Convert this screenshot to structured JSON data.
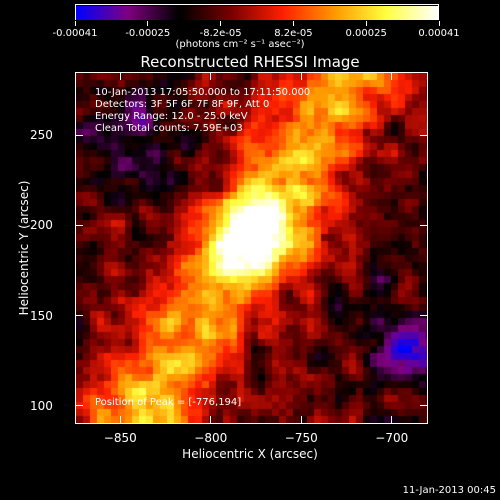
{
  "colorbar": {
    "tick_labels": [
      "-0.00041",
      "-0.00025",
      "-8.2e-05",
      "8.2e-05",
      "0.00025",
      "0.00041"
    ],
    "units": "(photons cm⁻² s⁻¹ asec⁻²)",
    "colormap": [
      "#0000ff",
      "#800080",
      "#000000",
      "#7a0000",
      "#ff2000",
      "#ff9900",
      "#ffff40",
      "#ffffff"
    ]
  },
  "title": "Reconstructed RHESSI Image",
  "annotations": {
    "time_range": "10-Jan-2013 17:05:50.000 to 17:11:50.000",
    "detectors": "Detectors: 3F 5F 6F 7F 8F 9F, Att 0",
    "energy_range": "Energy Range: 12.0 - 25.0 keV",
    "clean_counts": "Clean     Total counts: 7.59E+03",
    "peak_position": "Position of Peak = [-776,194]"
  },
  "axes": {
    "x_label": "Heliocentric X (arcsec)",
    "y_label": "Heliocentric Y (arcsec)",
    "x_range": [
      -875,
      -680
    ],
    "y_range": [
      90,
      285
    ],
    "x_ticks": [
      -850,
      -800,
      -750,
      -700
    ],
    "y_ticks": [
      100,
      150,
      200,
      250
    ]
  },
  "footer_date": "11-Jan-2013 00:45"
}
